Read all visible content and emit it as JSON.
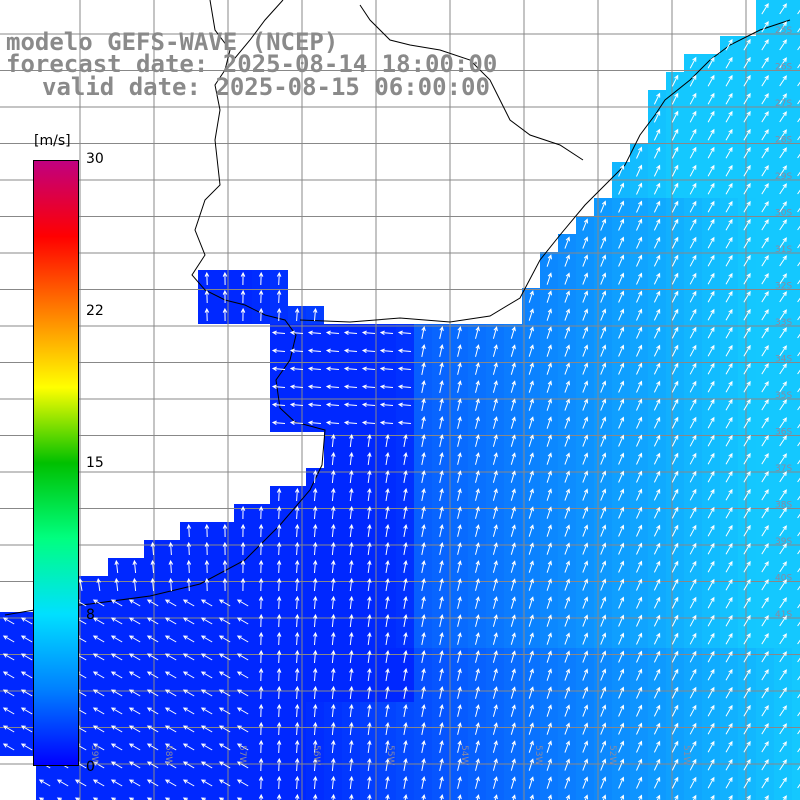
{
  "title": {
    "line1": "modelo GEFS-WAVE (NCEP)",
    "line2": "forecast date: 2025-08-14 18:00:00",
    "line3": "valid date: 2025-08-15 06:00:00"
  },
  "colorbar": {
    "unit": "[m/s]",
    "min": 0,
    "max": 30,
    "tick_labels": [
      "30",
      "22",
      "15",
      "8",
      "0"
    ],
    "stops": [
      "#0000ff",
      "#0080ff",
      "#00e0ff",
      "#00ff80",
      "#00c000",
      "#ffff00",
      "#ff8000",
      "#ff0000",
      "#c00080"
    ]
  },
  "map": {
    "variable": "wind speed and direction",
    "region": "South Atlantic, Rio de la Plata / southern Brazil coast",
    "lon_labels": [
      "59W",
      "58W",
      "57W",
      "56W",
      "55W",
      "54W",
      "53W",
      "52W",
      "51W"
    ],
    "lat_labels": [
      "25S",
      "26S",
      "27S",
      "28S",
      "29S",
      "30S",
      "31S",
      "32S",
      "33S",
      "34S",
      "35S",
      "36S",
      "37S",
      "38S",
      "39S",
      "40S",
      "41S"
    ],
    "colors": {
      "land": "#ffffff",
      "grid": "#888888",
      "coast": "#000000",
      "arrow": "#ffffff"
    }
  }
}
